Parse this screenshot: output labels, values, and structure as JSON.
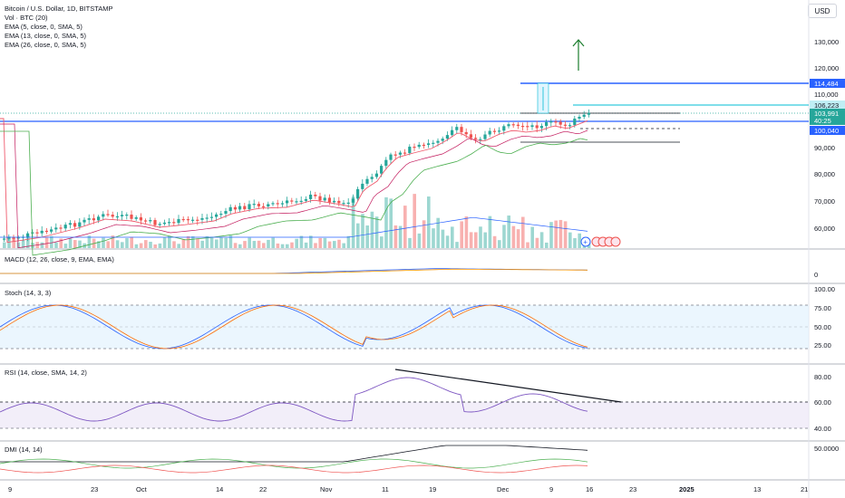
{
  "legend": {
    "title": "Bitcoin / U.S. Dollar, 1D, BITSTAMP",
    "lines": [
      "Vol · BTC (20)",
      "EMA (5, close, 0, SMA, 5)",
      "EMA (13, close, 0, SMA, 5)",
      "EMA (26, close, 0, SMA, 5)"
    ]
  },
  "currency_button": "USD",
  "panes": {
    "macd": "MACD (12, 26, close, 9, EMA, EMA)",
    "stoch": "Stoch (14, 3, 3)",
    "rsi": "RSI (14, close, SMA, 14, 2)",
    "dmi": "DMI (14, 14)"
  },
  "price_axis": [
    "130,000",
    "120,000",
    "110,000",
    "90,000",
    "80,000",
    "70,000",
    "60,000"
  ],
  "price_tags": {
    "resistance": "114,484",
    "level_cyan": "106,223",
    "last_price": "103,991",
    "countdown": "40:25",
    "support": "100,040"
  },
  "macd_axis": [
    "0"
  ],
  "stoch_axis": [
    "100.00",
    "75.00",
    "50.00",
    "25.00"
  ],
  "rsi_axis": [
    "80.00",
    "60.00",
    "40.00"
  ],
  "dmi_axis": [
    "50.0000"
  ],
  "time_axis": [
    "9",
    "23",
    "Oct",
    "14",
    "22",
    "Nov",
    "11",
    "19",
    "Dec",
    "9",
    "16",
    "23",
    "2025",
    "13",
    "21"
  ],
  "colors": {
    "up": "#26a69a",
    "down": "#ef5350",
    "blue_line": "#2962ff",
    "cyan_line": "#00bcd4",
    "ema_fast": "#ef5b6e",
    "ema_slow": "#4caf50",
    "rsi": "#7e57c2"
  }
}
